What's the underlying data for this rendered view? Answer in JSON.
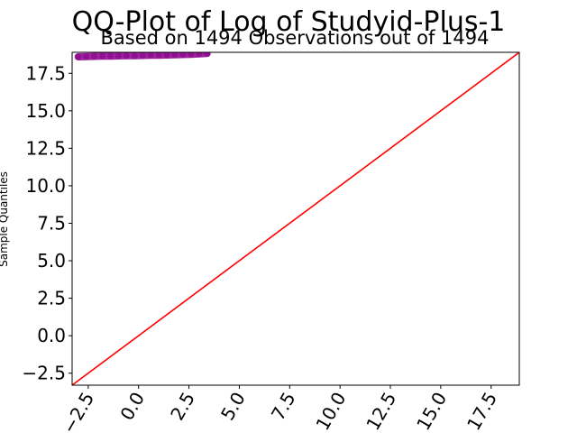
{
  "chart_data": {
    "type": "scatter",
    "title": "QQ-Plot of Log of Studyid-Plus-1",
    "subtitle": "Based on 1494 Observations out of 1494",
    "xlabel": "",
    "ylabel": "Sample Quantiles",
    "xlim": [
      -3.3,
      18.9
    ],
    "ylim": [
      -3.3,
      18.9
    ],
    "x_ticks": [
      -2.5,
      0.0,
      2.5,
      5.0,
      7.5,
      10.0,
      12.5,
      15.0,
      17.5
    ],
    "x_tick_labels": [
      "−2.5",
      "0.0",
      "2.5",
      "5.0",
      "7.5",
      "10.0",
      "12.5",
      "15.0",
      "17.5"
    ],
    "y_ticks": [
      -2.5,
      0.0,
      2.5,
      5.0,
      7.5,
      10.0,
      12.5,
      15.0,
      17.5
    ],
    "y_tick_labels": [
      "−2.5",
      "0.0",
      "2.5",
      "5.0",
      "7.5",
      "10.0",
      "12.5",
      "15.0",
      "17.5"
    ],
    "grid": false,
    "series": [
      {
        "name": "sample-quantiles",
        "color": "#8b008b",
        "points": [
          [
            -3.0,
            18.6
          ],
          [
            -2.6,
            18.62
          ],
          [
            -2.2,
            18.63
          ],
          [
            -1.8,
            18.64
          ],
          [
            -1.4,
            18.65
          ],
          [
            -1.0,
            18.66
          ],
          [
            -0.6,
            18.67
          ],
          [
            -0.2,
            18.68
          ],
          [
            0.2,
            18.69
          ],
          [
            0.6,
            18.7
          ],
          [
            1.0,
            18.71
          ],
          [
            1.4,
            18.72
          ],
          [
            1.8,
            18.73
          ],
          [
            2.2,
            18.75
          ],
          [
            2.6,
            18.77
          ],
          [
            3.0,
            18.79
          ],
          [
            3.4,
            18.82
          ]
        ]
      },
      {
        "name": "reference-line",
        "color": "#ff0000",
        "line": [
          [
            -3.3,
            -3.3
          ],
          [
            18.9,
            18.9
          ]
        ]
      }
    ]
  }
}
